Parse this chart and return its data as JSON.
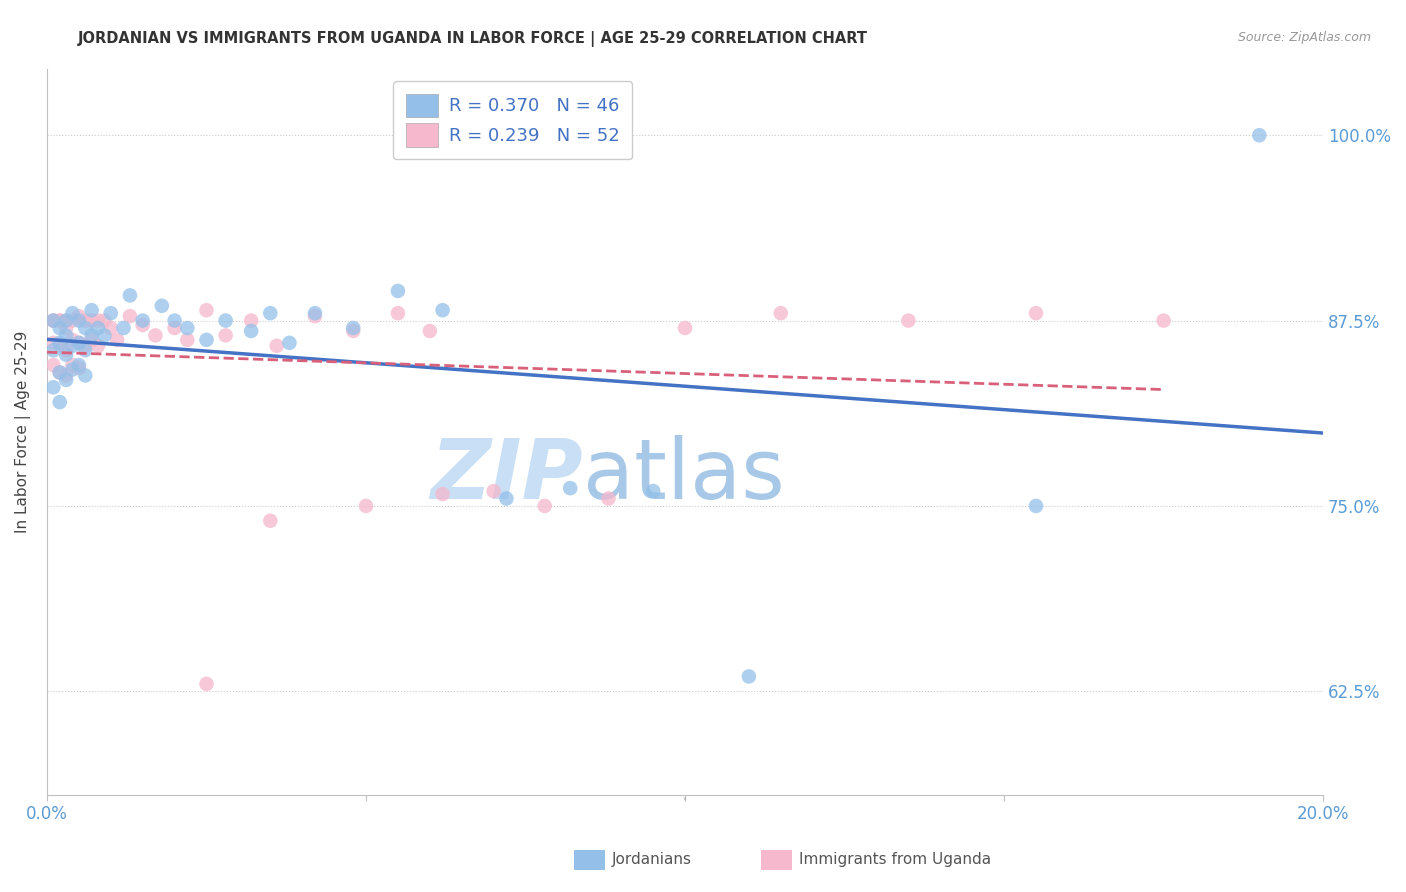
{
  "title": "JORDANIAN VS IMMIGRANTS FROM UGANDA IN LABOR FORCE | AGE 25-29 CORRELATION CHART",
  "source": "Source: ZipAtlas.com",
  "ylabel": "In Labor Force | Age 25-29",
  "ytick_labels": [
    "62.5%",
    "75.0%",
    "87.5%",
    "100.0%"
  ],
  "ytick_values": [
    0.625,
    0.75,
    0.875,
    1.0
  ],
  "xlim": [
    0.0,
    0.2
  ],
  "ylim": [
    0.555,
    1.045
  ],
  "R_jordanian": 0.37,
  "N_jordanian": 46,
  "R_uganda": 0.239,
  "N_uganda": 52,
  "color_jordanian": "#93bfe8",
  "color_uganda": "#f5b8cc",
  "line_color_jordanian": "#4472c4",
  "line_color_uganda": "#d9607a",
  "watermark_zip": "ZIP",
  "watermark_atlas": "atlas",
  "watermark_color_zip": "#c8dff5",
  "watermark_color_atlas": "#a8c8e8",
  "legend_label_jordanian": "Jordanians",
  "legend_label_uganda": "Immigrants from Uganda",
  "jordanian_x": [
    0.001,
    0.001,
    0.001,
    0.002,
    0.002,
    0.002,
    0.002,
    0.003,
    0.003,
    0.003,
    0.003,
    0.004,
    0.004,
    0.004,
    0.005,
    0.005,
    0.005,
    0.006,
    0.006,
    0.006,
    0.007,
    0.007,
    0.008,
    0.009,
    0.01,
    0.012,
    0.013,
    0.015,
    0.018,
    0.02,
    0.022,
    0.025,
    0.028,
    0.032,
    0.035,
    0.038,
    0.042,
    0.048,
    0.055,
    0.062,
    0.072,
    0.082,
    0.095,
    0.11,
    0.155,
    0.19
  ],
  "jordanian_y": [
    0.83,
    0.855,
    0.875,
    0.87,
    0.86,
    0.84,
    0.82,
    0.875,
    0.865,
    0.852,
    0.835,
    0.88,
    0.858,
    0.842,
    0.875,
    0.86,
    0.845,
    0.87,
    0.855,
    0.838,
    0.882,
    0.865,
    0.87,
    0.865,
    0.88,
    0.87,
    0.892,
    0.875,
    0.885,
    0.875,
    0.87,
    0.862,
    0.875,
    0.868,
    0.88,
    0.86,
    0.88,
    0.87,
    0.895,
    0.882,
    0.755,
    0.762,
    0.76,
    0.635,
    0.75,
    1.0
  ],
  "uganda_x": [
    0.001,
    0.001,
    0.001,
    0.001,
    0.002,
    0.002,
    0.002,
    0.002,
    0.003,
    0.003,
    0.003,
    0.003,
    0.004,
    0.004,
    0.004,
    0.005,
    0.005,
    0.005,
    0.006,
    0.006,
    0.007,
    0.007,
    0.008,
    0.008,
    0.009,
    0.01,
    0.011,
    0.013,
    0.015,
    0.017,
    0.02,
    0.022,
    0.025,
    0.028,
    0.032,
    0.036,
    0.042,
    0.048,
    0.055,
    0.062,
    0.07,
    0.078,
    0.088,
    0.1,
    0.115,
    0.135,
    0.155,
    0.175,
    0.05,
    0.06,
    0.025,
    0.035
  ],
  "uganda_y": [
    0.875,
    0.86,
    0.845,
    0.875,
    0.875,
    0.858,
    0.84,
    0.875,
    0.87,
    0.855,
    0.838,
    0.875,
    0.875,
    0.862,
    0.845,
    0.878,
    0.86,
    0.843,
    0.875,
    0.858,
    0.875,
    0.862,
    0.875,
    0.858,
    0.875,
    0.87,
    0.862,
    0.878,
    0.872,
    0.865,
    0.87,
    0.862,
    0.882,
    0.865,
    0.875,
    0.858,
    0.878,
    0.868,
    0.88,
    0.758,
    0.76,
    0.75,
    0.755,
    0.87,
    0.88,
    0.875,
    0.88,
    0.875,
    0.75,
    0.868,
    0.63,
    0.74
  ]
}
